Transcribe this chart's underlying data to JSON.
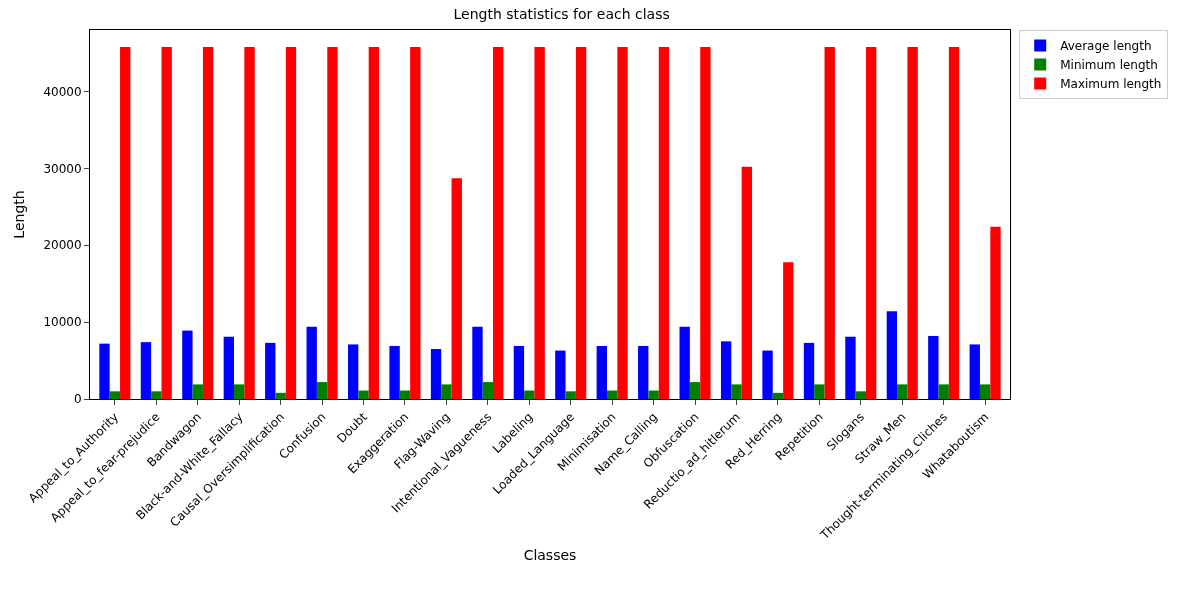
{
  "chart_data": {
    "type": "bar",
    "title": "Length statistics for each class",
    "xlabel": "Classes",
    "ylabel": "Length",
    "categories": [
      "Appeal_to_Authority",
      "Appeal_to_fear-prejudice",
      "Bandwagon",
      "Black-and-White_Fallacy",
      "Causal_Oversimplification",
      "Confusion",
      "Doubt",
      "Exaggeration",
      "Flag-Waving",
      "Intentional_Vagueness",
      "Labeling",
      "Loaded_Language",
      "Minimisation",
      "Name_Calling",
      "Obfuscation",
      "Reductio_ad_hitlerum",
      "Red_Herring",
      "Repetition",
      "Slogans",
      "Straw_Men",
      "Thought-terminating_Cliches",
      "Whataboutism"
    ],
    "series": [
      {
        "name": "Average length",
        "color": "#0000ff",
        "values": [
          7200,
          7400,
          8900,
          8100,
          7300,
          9400,
          7100,
          6900,
          6500,
          9400,
          6900,
          6300,
          6900,
          6900,
          9400,
          7500,
          6300,
          7300,
          8100,
          11400,
          8200,
          7100
        ]
      },
      {
        "name": "Minimum length",
        "color": "#008000",
        "values": [
          1000,
          1000,
          1900,
          1900,
          800,
          2200,
          1100,
          1100,
          1900,
          2200,
          1100,
          1000,
          1100,
          1100,
          2200,
          1900,
          800,
          1900,
          1000,
          1900,
          1900,
          1900
        ]
      },
      {
        "name": "Maximum length",
        "color": "#ff0000",
        "values": [
          45800,
          45800,
          45800,
          45800,
          45800,
          45800,
          45800,
          45800,
          28700,
          45800,
          45800,
          45800,
          45800,
          45800,
          45800,
          30200,
          17800,
          45800,
          45800,
          45800,
          45800,
          22400
        ]
      }
    ],
    "ylim": [
      0,
      48000
    ],
    "yticks": [
      0,
      10000,
      20000,
      30000,
      40000
    ],
    "legend": "top right"
  }
}
